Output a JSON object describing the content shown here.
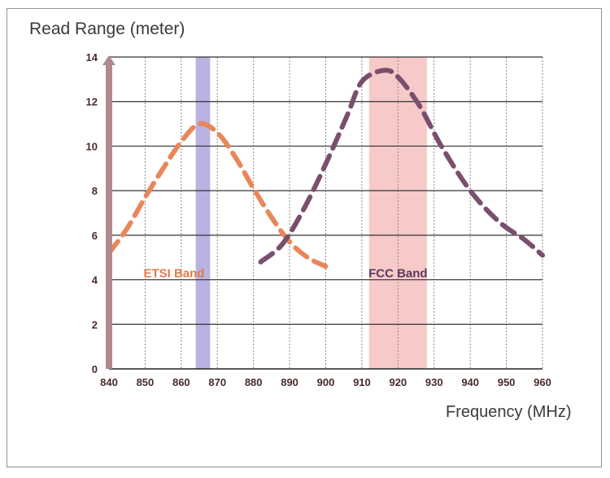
{
  "chart_data": {
    "type": "line",
    "ylabel": "Read Range  (meter)",
    "xlabel": "Frequency (MHz)",
    "xlim": [
      840,
      960
    ],
    "ylim": [
      0,
      14
    ],
    "xticks": [
      840,
      850,
      860,
      870,
      880,
      890,
      900,
      910,
      920,
      930,
      940,
      950,
      960
    ],
    "yticks": [
      0,
      2,
      4,
      6,
      8,
      10,
      12,
      14
    ],
    "grid": true,
    "bands": [
      {
        "label": "ETSI Band",
        "x_start": 864,
        "x_end": 868,
        "color": "#b8b3e0",
        "label_color": "#e07b4a",
        "label_x": 858,
        "label_y": 4.3
      },
      {
        "label": "FCC Band",
        "x_start": 912,
        "x_end": 928,
        "color": "#f7c9c9",
        "label_color": "#5b3a5e",
        "label_x": 920,
        "label_y": 4.3
      }
    ],
    "series": [
      {
        "color": "#e8875a",
        "x": [
          840,
          845,
          850,
          855,
          860,
          865,
          870,
          875,
          880,
          885,
          890,
          895,
          900
        ],
        "y": [
          5.2,
          6.3,
          7.7,
          9.0,
          10.2,
          11.0,
          10.6,
          9.5,
          8.1,
          6.8,
          5.7,
          5.0,
          4.6
        ]
      },
      {
        "color": "#7a4f6e",
        "x": [
          882,
          888,
          894,
          900,
          906,
          910,
          916,
          920,
          926,
          932,
          940,
          948,
          955,
          960
        ],
        "y": [
          4.8,
          5.6,
          7.2,
          9.2,
          11.4,
          12.9,
          13.4,
          13.1,
          11.8,
          10.0,
          8.0,
          6.6,
          5.8,
          5.1
        ]
      }
    ]
  }
}
